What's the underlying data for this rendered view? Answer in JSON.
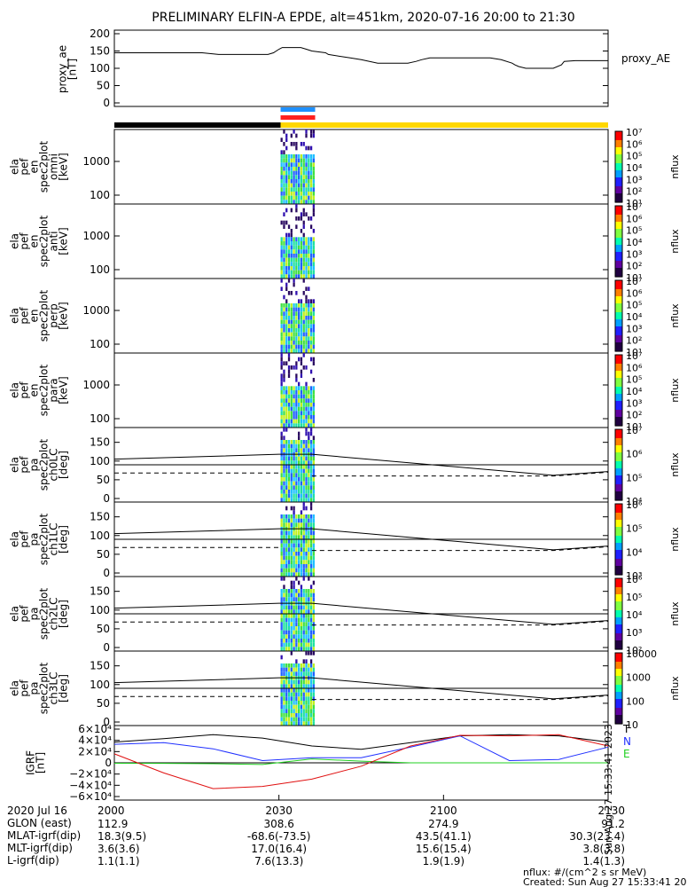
{
  "title": "PRELIMINARY ELFIN-A EPDE, alt=451km, 2020-07-16 20:00 to 21:30",
  "chart_data": [
    {
      "type": "line",
      "name": "proxy_ae",
      "ylabel": [
        "proxy_ae",
        "[nT]"
      ],
      "ylim": [
        0,
        200
      ],
      "yticks": [
        "200",
        "150",
        "100",
        "50",
        "0"
      ],
      "legend": "proxy_AE",
      "x": [
        0,
        15,
        16,
        19,
        19.5,
        21,
        23.5,
        24.5,
        26,
        28,
        29,
        30,
        30.6,
        32,
        34,
        35,
        36,
        38.5,
        39,
        43,
        45,
        48,
        49.5,
        51,
        52,
        53.5,
        55,
        56,
        57.5,
        59,
        60,
        61.5,
        62,
        63,
        63.5,
        66,
        67.5,
        68.5,
        70.5,
        72.5,
        73,
        73.7,
        75,
        76,
        76.5,
        80,
        81.5,
        82,
        84,
        90
      ],
      "values": [
        145,
        145,
        145,
        140,
        140,
        140,
        140,
        140,
        140,
        140,
        145,
        155,
        160,
        160,
        160,
        155,
        150,
        145,
        140,
        130,
        125,
        115,
        115,
        115,
        115,
        115,
        120,
        125,
        130,
        130,
        130,
        130,
        130,
        130,
        130,
        130,
        130,
        130,
        125,
        115,
        110,
        105,
        100,
        100,
        100,
        100,
        110,
        120,
        122,
        122
      ]
    },
    {
      "type": "heatmap",
      "name": "ela_pef_en_spec2plot_omni",
      "ylabel": [
        "ela",
        "pef",
        "en",
        "spec2plot",
        "omni",
        "[keV]"
      ],
      "yscale": "log",
      "yticks": [
        "1000",
        "100"
      ],
      "colorbar": [
        "10⁷",
        "10⁶",
        "10⁵",
        "10⁴",
        "10³",
        "10²",
        "10¹"
      ],
      "colorbar_label": "nflux"
    },
    {
      "type": "heatmap",
      "name": "ela_pef_en_spec2plot_anti",
      "ylabel": [
        "ela",
        "pef",
        "en",
        "spec2plot",
        "anti",
        "[keV]"
      ],
      "yscale": "log",
      "yticks": [
        "1000",
        "100"
      ],
      "colorbar": [
        "10⁷",
        "10⁶",
        "10⁵",
        "10⁴",
        "10³",
        "10²",
        "10¹"
      ],
      "colorbar_label": "nflux"
    },
    {
      "type": "heatmap",
      "name": "ela_pef_en_spec2plot_perp",
      "ylabel": [
        "ela",
        "pef",
        "en",
        "spec2plot",
        "perp",
        "[keV]"
      ],
      "yscale": "log",
      "yticks": [
        "1000",
        "100"
      ],
      "colorbar": [
        "10⁷",
        "10⁶",
        "10⁵",
        "10⁴",
        "10³",
        "10²",
        "10¹"
      ],
      "colorbar_label": "nflux"
    },
    {
      "type": "heatmap",
      "name": "ela_pef_en_spec2plot_para",
      "ylabel": [
        "ela",
        "pef",
        "en",
        "spec2plot",
        "para",
        "[keV]"
      ],
      "yscale": "log",
      "yticks": [
        "1000",
        "100"
      ],
      "colorbar": [
        "10⁷",
        "10⁶",
        "10⁵",
        "10⁴",
        "10³",
        "10²",
        "10¹"
      ],
      "colorbar_label": "nflux"
    },
    {
      "type": "heatmap",
      "name": "ela_pef_pa_spec2plot_ch0LC",
      "ylabel": [
        "ela",
        "pef",
        "pa",
        "spec2plot",
        "ch0LC",
        "[deg]"
      ],
      "ylim": [
        0,
        180
      ],
      "yticks": [
        "150",
        "100",
        "50",
        "0"
      ],
      "colorbar": [
        "10⁷",
        "10⁶",
        "10⁵",
        "10⁴"
      ],
      "colorbar_label": "nflux"
    },
    {
      "type": "heatmap",
      "name": "ela_pef_pa_spec2plot_ch1LC",
      "ylabel": [
        "ela",
        "pef",
        "pa",
        "spec2plot",
        "ch1LC",
        "[deg]"
      ],
      "ylim": [
        0,
        180
      ],
      "yticks": [
        "150",
        "100",
        "50",
        "0"
      ],
      "colorbar": [
        "10⁶",
        "10⁵",
        "10⁴",
        "10³"
      ],
      "colorbar_label": "nflux"
    },
    {
      "type": "heatmap",
      "name": "ela_pef_pa_spec2plot_ch2LC",
      "ylabel": [
        "ela",
        "pef",
        "pa",
        "spec2plot",
        "ch2LC",
        "[deg]"
      ],
      "ylim": [
        0,
        180
      ],
      "yticks": [
        "150",
        "100",
        "50",
        "0"
      ],
      "colorbar": [
        "10⁶",
        "10⁵",
        "10⁴",
        "10³",
        "10²"
      ],
      "colorbar_label": "nflux"
    },
    {
      "type": "heatmap",
      "name": "ela_pef_pa_spec2plot_ch3LC",
      "ylabel": [
        "ela",
        "pef",
        "pa",
        "spec2plot",
        "ch3LC",
        "[deg]"
      ],
      "ylim": [
        0,
        180
      ],
      "yticks": [
        "150",
        "100",
        "50",
        "0"
      ],
      "colorbar": [
        "10000",
        "1000",
        "100",
        "10"
      ],
      "colorbar_label": "nflux"
    },
    {
      "type": "line",
      "name": "IGRF",
      "ylabel": [
        "IGRF",
        "[nT]"
      ],
      "ylim": [
        -60000,
        60000
      ],
      "yticks": [
        "6×10⁴",
        "4×10⁴",
        "2×10⁴",
        "0",
        "−2×10⁴",
        "−4×10⁴",
        "−6×10⁴"
      ],
      "legend": [
        "T",
        "N",
        "E"
      ],
      "x": [
        0,
        9,
        18,
        27,
        36,
        45,
        54,
        63,
        72,
        81,
        90
      ],
      "series": [
        {
          "name": "T",
          "color": "#000000",
          "values": [
            37000,
            43000,
            50000,
            44000,
            30000,
            24000,
            36000,
            48000,
            50000,
            48000,
            37000
          ]
        },
        {
          "name": "N",
          "color": "#2030ff",
          "values": [
            33000,
            36000,
            25000,
            4000,
            9000,
            9000,
            28000,
            48000,
            4000,
            6000,
            28000
          ]
        },
        {
          "name": "E",
          "color": "#20d020",
          "values": [
            -800,
            -1000,
            -1500,
            -3000,
            7000,
            3000,
            0,
            0,
            0,
            0,
            0
          ]
        },
        {
          "name": "",
          "color": "#e01010",
          "values": [
            16000,
            -18000,
            -46000,
            -42000,
            -29000,
            -6000,
            30000,
            49000,
            48000,
            50000,
            30000
          ]
        }
      ]
    }
  ],
  "colorbar_label": "nflux",
  "x_axis": {
    "row_labels": [
      "2020 Jul 16",
      "GLON (east)",
      "MLAT-igrf(dip)",
      "MLT-igrf(dip)",
      "L-igrf(dip)"
    ],
    "ticks": [
      {
        "time": "2000",
        "values": [
          "112.9",
          "18.3(9.5)",
          "3.6(3.6)",
          "1.1(1.1)"
        ]
      },
      {
        "time": "2030",
        "values": [
          "308.6",
          "-68.6(-73.5)",
          "17.0(16.4)",
          "7.6(13.3)"
        ]
      },
      {
        "time": "2100",
        "values": [
          "274.9",
          "43.5(41.1)",
          "15.6(15.4)",
          "1.9(1.9)"
        ]
      },
      {
        "time": "2130",
        "values": [
          "91.2",
          "30.3(23.4)",
          "3.8(3.8)",
          "1.4(1.3)"
        ]
      }
    ]
  },
  "sidebar_stamp": "Sun Aug 27 15:33:41 2023",
  "footnote_units": "nflux: #/(cm^2 s sr MeV)",
  "footnote_created": "Created: Sun Aug 27 15:33:41 2023",
  "colors": {
    "black_bar": "#000000",
    "yellow_bar": "#ffd700",
    "blue_bar": "#1e90ff",
    "red_bar": "#ff2020"
  }
}
